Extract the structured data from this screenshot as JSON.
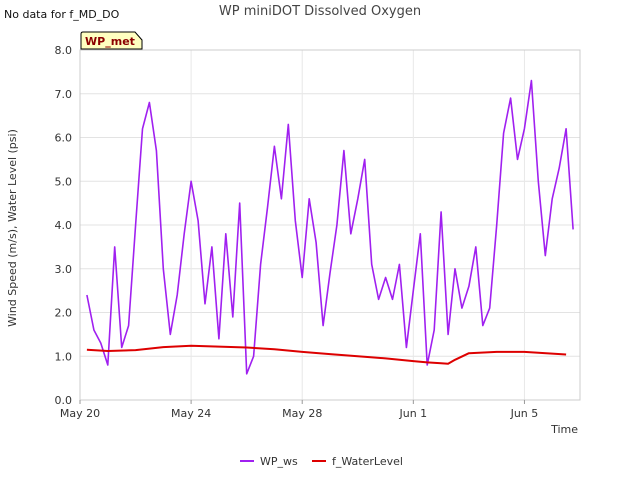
{
  "note": "No data for f_MD_DO",
  "chart_data": {
    "type": "line",
    "title": "WP miniDOT Dissolved Oxygen",
    "xlabel": "Time",
    "ylabel": "Wind Speed (m/s), Water Level (psi)",
    "xlim": [
      "2023-05-20",
      "2023-06-07"
    ],
    "ylim": [
      0,
      8
    ],
    "x_ticks": [
      {
        "x": "2023-05-20",
        "label": "May 20"
      },
      {
        "x": "2023-05-24",
        "label": "May 24"
      },
      {
        "x": "2023-05-28",
        "label": "May 28"
      },
      {
        "x": "2023-06-01",
        "label": "Jun 1"
      },
      {
        "x": "2023-06-05",
        "label": "Jun 5"
      }
    ],
    "y_ticks": [
      "0.0",
      "1.0",
      "2.0",
      "3.0",
      "4.0",
      "5.0",
      "6.0",
      "7.0",
      "8.0"
    ],
    "grid": true,
    "legend_position": "bottom",
    "box_label": "WP_met",
    "series": [
      {
        "name": "WP_ws",
        "color": "#a020f0",
        "x": [
          "2023-05-20 06:00",
          "2023-05-20 12:00",
          "2023-05-20 18:00",
          "2023-05-21 00:00",
          "2023-05-21 06:00",
          "2023-05-21 12:00",
          "2023-05-21 18:00",
          "2023-05-22 00:00",
          "2023-05-22 06:00",
          "2023-05-22 12:00",
          "2023-05-22 18:00",
          "2023-05-23 00:00",
          "2023-05-23 06:00",
          "2023-05-23 12:00",
          "2023-05-23 18:00",
          "2023-05-24 00:00",
          "2023-05-24 06:00",
          "2023-05-24 12:00",
          "2023-05-24 18:00",
          "2023-05-25 00:00",
          "2023-05-25 06:00",
          "2023-05-25 12:00",
          "2023-05-25 18:00",
          "2023-05-26 00:00",
          "2023-05-26 06:00",
          "2023-05-26 12:00",
          "2023-05-26 18:00",
          "2023-05-27 00:00",
          "2023-05-27 06:00",
          "2023-05-27 12:00",
          "2023-05-27 18:00",
          "2023-05-28 00:00",
          "2023-05-28 06:00",
          "2023-05-28 12:00",
          "2023-05-28 18:00",
          "2023-05-29 00:00",
          "2023-05-29 06:00",
          "2023-05-29 12:00",
          "2023-05-29 18:00",
          "2023-05-30 00:00",
          "2023-05-30 06:00",
          "2023-05-30 12:00",
          "2023-05-30 18:00",
          "2023-05-31 00:00",
          "2023-05-31 06:00",
          "2023-05-31 12:00",
          "2023-05-31 18:00",
          "2023-06-01 00:00",
          "2023-06-01 06:00",
          "2023-06-01 12:00",
          "2023-06-01 18:00",
          "2023-06-02 00:00",
          "2023-06-02 06:00",
          "2023-06-02 12:00",
          "2023-06-02 18:00",
          "2023-06-03 00:00",
          "2023-06-03 06:00",
          "2023-06-03 12:00",
          "2023-06-03 18:00",
          "2023-06-04 00:00",
          "2023-06-04 06:00",
          "2023-06-04 12:00",
          "2023-06-04 18:00",
          "2023-06-05 00:00",
          "2023-06-05 06:00",
          "2023-06-05 12:00",
          "2023-06-05 18:00",
          "2023-06-06 00:00",
          "2023-06-06 06:00",
          "2023-06-06 12:00",
          "2023-06-06 18:00"
        ],
        "values": [
          2.4,
          1.6,
          1.3,
          0.8,
          3.5,
          1.2,
          1.7,
          4.0,
          6.2,
          6.8,
          5.7,
          3.0,
          1.5,
          2.4,
          3.8,
          5.0,
          4.1,
          2.2,
          3.5,
          1.4,
          3.8,
          1.9,
          4.5,
          0.6,
          1.0,
          3.1,
          4.4,
          5.8,
          4.6,
          6.3,
          4.1,
          2.8,
          4.6,
          3.6,
          1.7,
          2.9,
          4.0,
          5.7,
          3.8,
          4.6,
          5.5,
          3.1,
          2.3,
          2.8,
          2.3,
          3.1,
          1.2,
          2.5,
          3.8,
          0.8,
          1.6,
          4.3,
          1.5,
          3.0,
          2.1,
          2.6,
          3.5,
          1.7,
          2.1,
          4.0,
          6.1,
          6.9,
          5.5,
          6.2,
          7.3,
          5.0,
          3.3,
          4.6,
          5.3,
          6.2,
          3.9
        ]
      },
      {
        "name": "f_WaterLevel",
        "color": "#dd0000",
        "x": [
          "2023-05-20 06:00",
          "2023-05-21 00:00",
          "2023-05-22 00:00",
          "2023-05-23 00:00",
          "2023-05-24 00:00",
          "2023-05-25 00:00",
          "2023-05-26 00:00",
          "2023-05-27 00:00",
          "2023-05-28 00:00",
          "2023-05-29 00:00",
          "2023-05-30 00:00",
          "2023-05-31 00:00",
          "2023-06-01 00:00",
          "2023-06-01 12:00",
          "2023-06-02 00:00",
          "2023-06-02 06:00",
          "2023-06-02 12:00",
          "2023-06-03 00:00",
          "2023-06-04 00:00",
          "2023-06-05 00:00",
          "2023-06-06 00:00",
          "2023-06-06 12:00"
        ],
        "values": [
          1.15,
          1.12,
          1.14,
          1.21,
          1.24,
          1.22,
          1.2,
          1.16,
          1.1,
          1.05,
          1.0,
          0.95,
          0.89,
          0.86,
          0.84,
          0.83,
          0.92,
          1.07,
          1.1,
          1.1,
          1.06,
          1.04
        ]
      }
    ]
  }
}
